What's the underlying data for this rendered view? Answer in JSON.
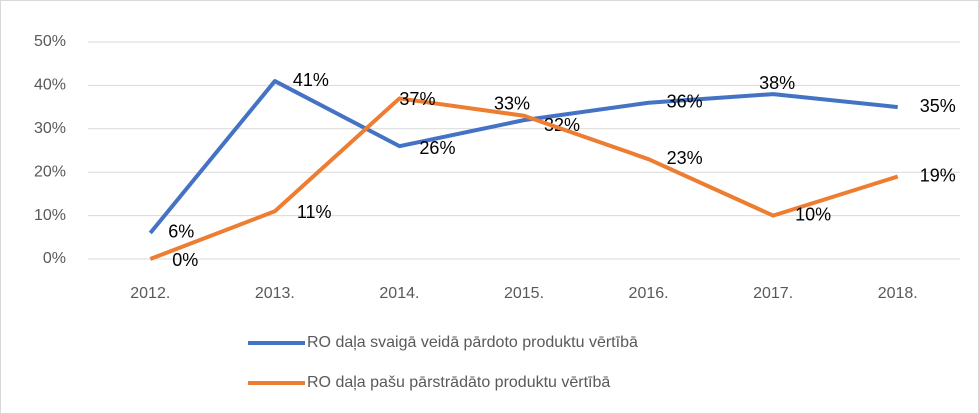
{
  "chart_data": {
    "type": "line",
    "categories": [
      "2012.",
      "2013.",
      "2014.",
      "2015.",
      "2016.",
      "2017.",
      "2018."
    ],
    "series": [
      {
        "name": "RO daļa svaigā veidā pārdoto produktu vērtībā",
        "color": "#4472c4",
        "values": [
          6,
          41,
          26,
          32,
          36,
          38,
          35
        ],
        "value_labels": [
          "6%",
          "41%",
          "26%",
          "32%",
          "36%",
          "38%",
          "35%"
        ]
      },
      {
        "name": "RO daļa pašu pārstrādāto produktu vērtībā",
        "color": "#ed7d31",
        "values": [
          0,
          11,
          37,
          33,
          23,
          10,
          19
        ],
        "value_labels": [
          "0%",
          "11%",
          "37%",
          "33%",
          "23%",
          "10%",
          "19%"
        ]
      }
    ],
    "ylim": [
      0,
      50
    ],
    "yticks": [
      {
        "value": 0,
        "label": "0%"
      },
      {
        "value": 10,
        "label": "10%"
      },
      {
        "value": 20,
        "label": "20%"
      },
      {
        "value": 30,
        "label": "30%"
      },
      {
        "value": 40,
        "label": "40%"
      },
      {
        "value": 50,
        "label": "50%"
      }
    ],
    "grid": true,
    "legend": "bottom"
  }
}
